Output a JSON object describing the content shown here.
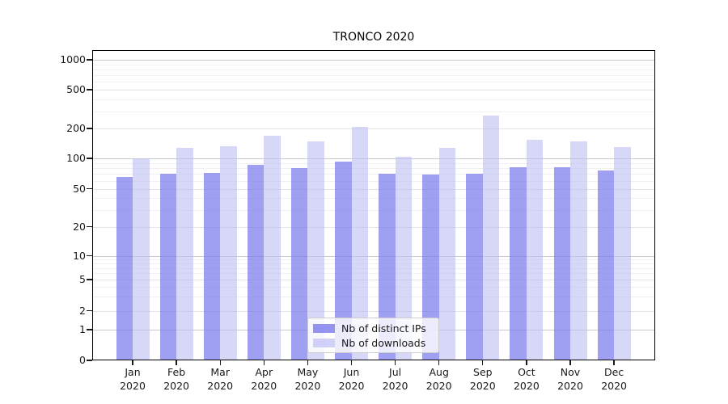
{
  "title": "TRONCO 2020",
  "chart_data": {
    "type": "bar",
    "title": "TRONCO 2020",
    "categories": [
      "Jan 2020",
      "Feb 2020",
      "Mar 2020",
      "Apr 2020",
      "May 2020",
      "Jun 2020",
      "Jul 2020",
      "Aug 2020",
      "Sep 2020",
      "Oct 2020",
      "Nov 2020",
      "Dec 2020"
    ],
    "months": [
      "Jan",
      "Feb",
      "Mar",
      "Apr",
      "May",
      "Jun",
      "Jul",
      "Aug",
      "Sep",
      "Oct",
      "Nov",
      "Dec"
    ],
    "year": "2020",
    "series": [
      {
        "name": "Nb of distinct IPs",
        "color": "#7d7ded",
        "fill_opacity": 0.73,
        "values": [
          65,
          71,
          72,
          87,
          80,
          93,
          71,
          69,
          71,
          82,
          82,
          76
        ]
      },
      {
        "name": "Nb of downloads",
        "color": "#bebef4",
        "fill_opacity": 0.62,
        "values": [
          100,
          128,
          132,
          170,
          148,
          206,
          103,
          127,
          270,
          153,
          147,
          130
        ]
      }
    ],
    "y_ticks": [
      0,
      1,
      2,
      5,
      10,
      20,
      50,
      100,
      200,
      500,
      1000
    ],
    "y_scale": "log (zero baseline)",
    "ylim": [
      0,
      1300
    ],
    "grid": true,
    "legend_position": "lower center",
    "grid_major_color": "#c9c9c9",
    "grid_minor_color": "#f0f0f0"
  }
}
